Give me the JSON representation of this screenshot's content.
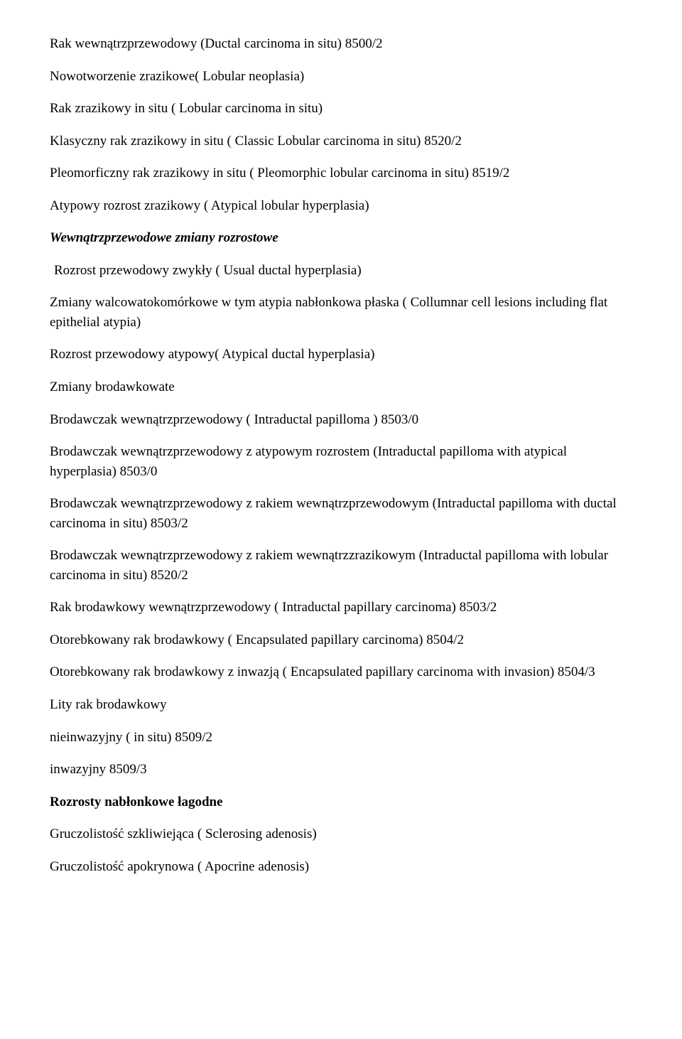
{
  "lines": {
    "l1": "Rak wewnątrzprzewodowy (Ductal carcinoma in situ) 8500/2",
    "l2": "Nowotworzenie zrazikowe( Lobular neoplasia)",
    "l3": "Rak zrazikowy in situ ( Lobular carcinoma in situ)",
    "l4": "Klasyczny rak zrazikowy in situ ( Classic Lobular carcinoma in situ) 8520/2",
    "l5": "Pleomorficzny rak zrazikowy in situ ( Pleomorphic lobular carcinoma in situ) 8519/2",
    "l6": "Atypowy rozrost zrazikowy ( Atypical lobular hyperplasia)",
    "l7": "Wewnątrzprzewodowe zmiany rozrostowe",
    "l8": "Rozrost przewodowy zwykły ( Usual ductal hyperplasia)",
    "l9": "Zmiany walcowatokomórkowe w tym atypia nabłonkowa płaska ( Collumnar cell lesions including flat epithelial atypia)",
    "l10": "Rozrost przewodowy atypowy( Atypical ductal hyperplasia)",
    "l11": "Zmiany brodawkowate",
    "l12": "Brodawczak wewnątrzprzewodowy ( Intraductal papilloma ) 8503/0",
    "l13": "Brodawczak  wewnątrzprzewodowy z atypowym rozrostem (Intraductal papilloma with atypical hyperplasia)  8503/0",
    "l14": "Brodawczak wewnątrzprzewodowy z rakiem wewnątrzprzewodowym (Intraductal papilloma with ductal carcinoma in situ) 8503/2",
    "l15": "Brodawczak wewnątrzprzewodowy z rakiem wewnątrzzrazikowym (Intraductal papilloma with lobular carcinoma in situ) 8520/2",
    "l16": "Rak brodawkowy wewnątrzprzewodowy ( Intraductal papillary carcinoma) 8503/2",
    "l17": "Otorebkowany rak brodawkowy ( Encapsulated papillary carcinoma) 8504/2",
    "l18": "Otorebkowany rak brodawkowy z inwazją ( Encapsulated papillary carcinoma with invasion) 8504/3",
    "l19": "Lity rak brodawkowy",
    "l20": "nieinwazyjny ( in situ) 8509/2",
    "l21": "inwazyjny 8509/3",
    "l22": "Rozrosty nabłonkowe łagodne",
    "l23": "Gruczolistość szkliwiejąca ( Sclerosing adenosis)",
    "l24": "Gruczolistość  apokrynowa ( Apocrine adenosis)"
  }
}
